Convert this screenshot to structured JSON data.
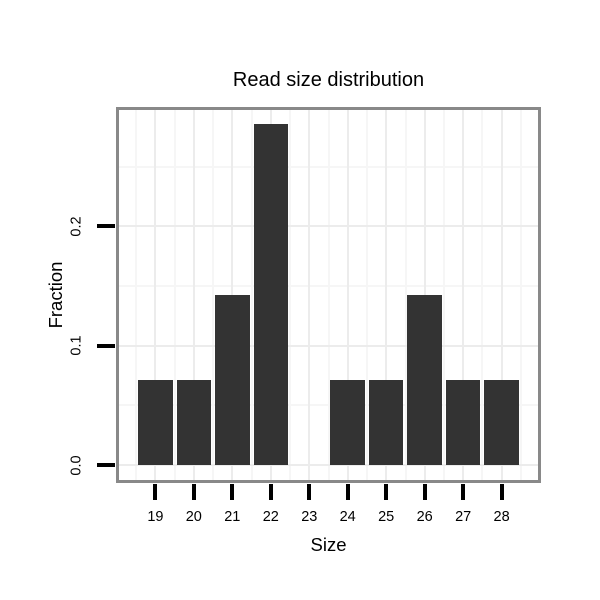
{
  "chart_data": {
    "type": "bar",
    "title": "Read size distribution",
    "xlabel": "Size",
    "ylabel": "Fraction",
    "categories": [
      19,
      20,
      21,
      22,
      23,
      24,
      25,
      26,
      27,
      28
    ],
    "values": [
      0.0714,
      0.0714,
      0.1429,
      0.2857,
      0,
      0.0714,
      0.0714,
      0.1429,
      0.0714,
      0.0714
    ],
    "x_tick_labels": [
      "19",
      "20",
      "21",
      "22",
      "23",
      "24",
      "25",
      "26",
      "27",
      "28"
    ],
    "y_tick_labels": [
      "0.0",
      "0.1",
      "0.2"
    ],
    "y_tick_values": [
      0.0,
      0.1,
      0.2
    ],
    "y_minor_values": [
      0.05,
      0.15,
      0.25
    ],
    "xlim": [
      18.055,
      28.945
    ],
    "ylim": [
      -0.0125,
      0.2975
    ],
    "bar_width": 0.9,
    "grid": true,
    "legend": false,
    "colors": {
      "bar_fill": "#333333",
      "panel_border": "#898989",
      "panel_background": "#ffffff",
      "grid_major": "#ececec",
      "grid_minor": "#f6f6f6",
      "tick": "#000000",
      "text": "#000000",
      "figure_background": "#ffffff"
    }
  }
}
